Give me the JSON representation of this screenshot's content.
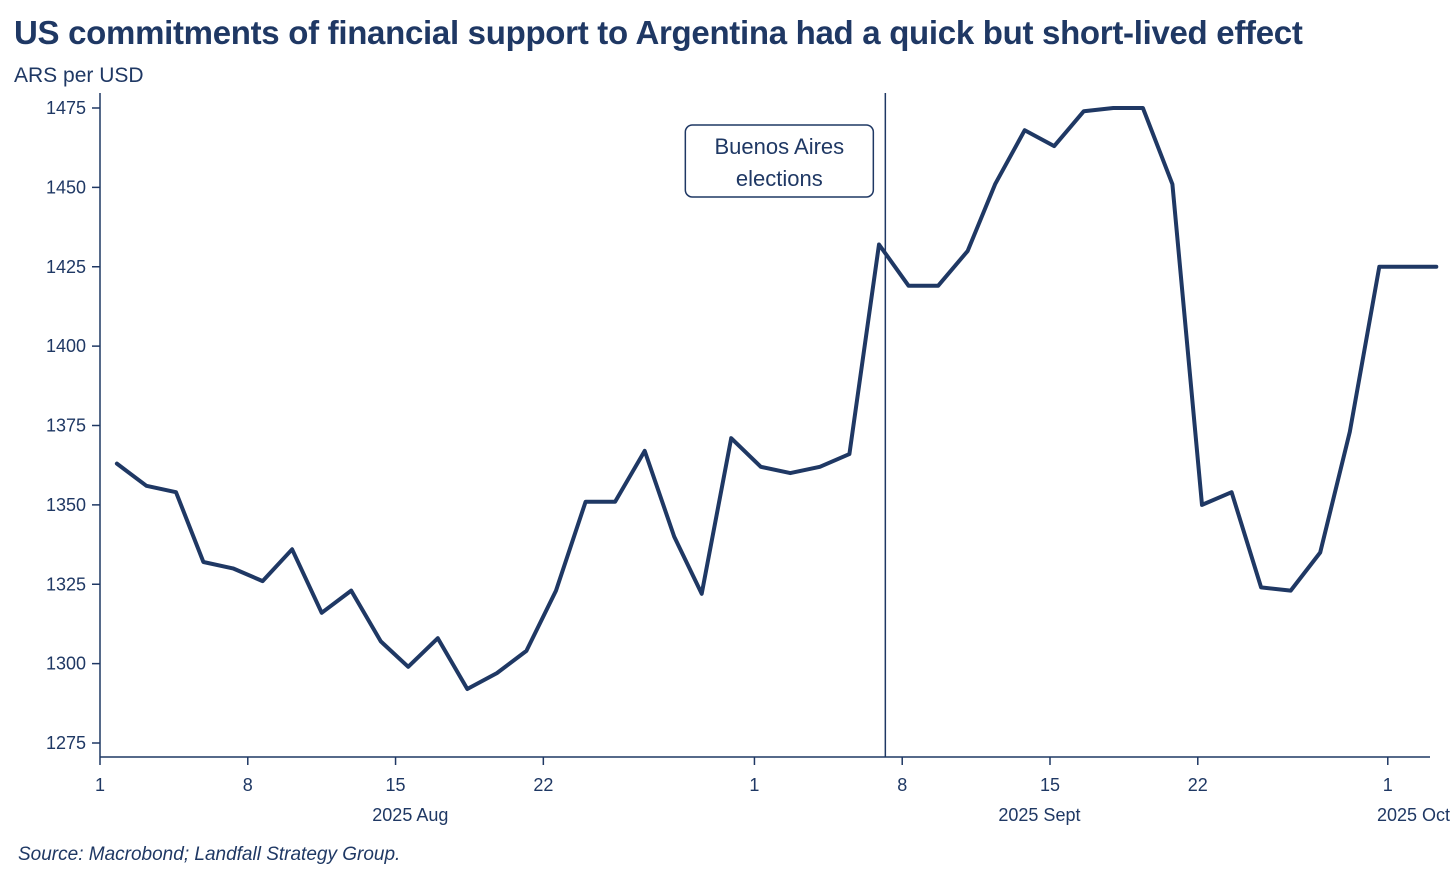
{
  "chart_data": {
    "type": "line",
    "title": "US commitments of financial support to Argentina had a quick but short-lived effect",
    "ylabel": "ARS per USD",
    "xlabel": "",
    "ylim": [
      1275,
      1480
    ],
    "yticks": [
      1275,
      1300,
      1325,
      1350,
      1375,
      1400,
      1425,
      1450,
      1475
    ],
    "xlim_day_index": [
      0,
      63
    ],
    "xticks": [
      {
        "day": 0,
        "label": "1"
      },
      {
        "day": 7,
        "label": "8"
      },
      {
        "day": 14,
        "label": "15"
      },
      {
        "day": 21,
        "label": "22"
      },
      {
        "day": 31,
        "label": "1"
      },
      {
        "day": 38,
        "label": "8"
      },
      {
        "day": 45,
        "label": "15"
      },
      {
        "day": 52,
        "label": "22"
      },
      {
        "day": 61,
        "label": "1"
      }
    ],
    "month_labels": [
      {
        "day": 14.7,
        "label": "2025 Aug"
      },
      {
        "day": 44.5,
        "label": "2025 Sept"
      },
      {
        "day": 63.2,
        "label": "2025 Oct"
      }
    ],
    "series": [
      {
        "name": "ARS per USD",
        "color": "#1f3864",
        "x": [
          0.8,
          2.2,
          3.6,
          4.9,
          6.3,
          7.7,
          9.1,
          10.5,
          11.9,
          13.3,
          14.6,
          16.0,
          17.4,
          18.8,
          20.2,
          21.6,
          23.0,
          24.4,
          25.8,
          27.2,
          28.5,
          29.9,
          31.3,
          32.7,
          34.1,
          35.5,
          36.9,
          38.3,
          39.7,
          41.1,
          42.4,
          43.8,
          45.2,
          46.6,
          48.0,
          49.4,
          50.8,
          52.2,
          53.6,
          55.0,
          56.4,
          57.8,
          59.2,
          60.6,
          62.0,
          63.3
        ],
        "values": [
          1363,
          1356,
          1354,
          1332,
          1330,
          1326,
          1336,
          1316,
          1323,
          1307,
          1299,
          1308,
          1292,
          1297,
          1304,
          1323,
          1351,
          1351,
          1367,
          1340,
          1322,
          1371,
          1362,
          1360,
          1362,
          1366,
          1432,
          1419,
          1419,
          1430,
          1451,
          1468,
          1463,
          1474,
          1475,
          1475,
          1451,
          1350,
          1354,
          1324,
          1323,
          1335,
          1373,
          1425,
          1425,
          1425
        ]
      }
    ],
    "annotations": [
      {
        "type": "vline",
        "day": 37.2,
        "label": "Buenos Aires elections",
        "label_lines": [
          "Buenos Aires",
          "elections"
        ]
      }
    ],
    "source": "Source: Macrobond; Landfall Strategy Group."
  }
}
